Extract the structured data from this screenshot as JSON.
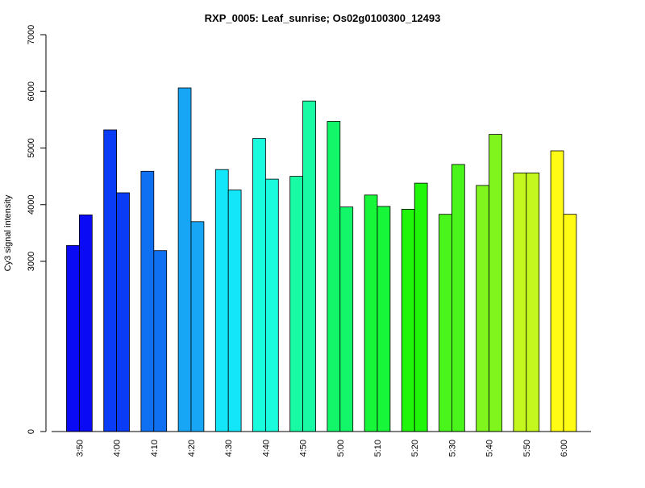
{
  "chart_data": {
    "type": "bar",
    "title": "RXP_0005: Leaf_sunrise; Os02g0100300_12493",
    "xlabel": "",
    "ylabel": "Cy3 signal intensity",
    "ylim": [
      0,
      7000
    ],
    "yticks": [
      0,
      3000,
      4000,
      5000,
      6000,
      7000
    ],
    "ytick_labels": [
      "0",
      "3000",
      "4000",
      "5000",
      "6000",
      "7000"
    ],
    "categories": [
      "3:50",
      "4:00",
      "4:10",
      "4:20",
      "4:30",
      "4:40",
      "4:50",
      "5:00",
      "5:10",
      "5:20",
      "5:30",
      "5:40",
      "5:50",
      "6:00"
    ],
    "colors": [
      "#0a0af5",
      "#0a3cf5",
      "#0f70f2",
      "#17a6f5",
      "#14e6fa",
      "#1afadc",
      "#18faa3",
      "#14f66a",
      "#18f63a",
      "#1ff60a",
      "#4af51c",
      "#80f51d",
      "#c3f71d",
      "#fffb15"
    ],
    "series": [
      {
        "values": [
          3280,
          5320,
          4590,
          6060,
          4620,
          5170,
          4500,
          5470,
          4170,
          3920,
          3830,
          4340,
          4560,
          4950
        ]
      },
      {
        "values": [
          3820,
          4210,
          3190,
          3700,
          4260,
          4450,
          5830,
          3960,
          3970,
          4380,
          4710,
          5240,
          4560,
          3830
        ]
      }
    ],
    "grid": false,
    "legend": "none"
  }
}
